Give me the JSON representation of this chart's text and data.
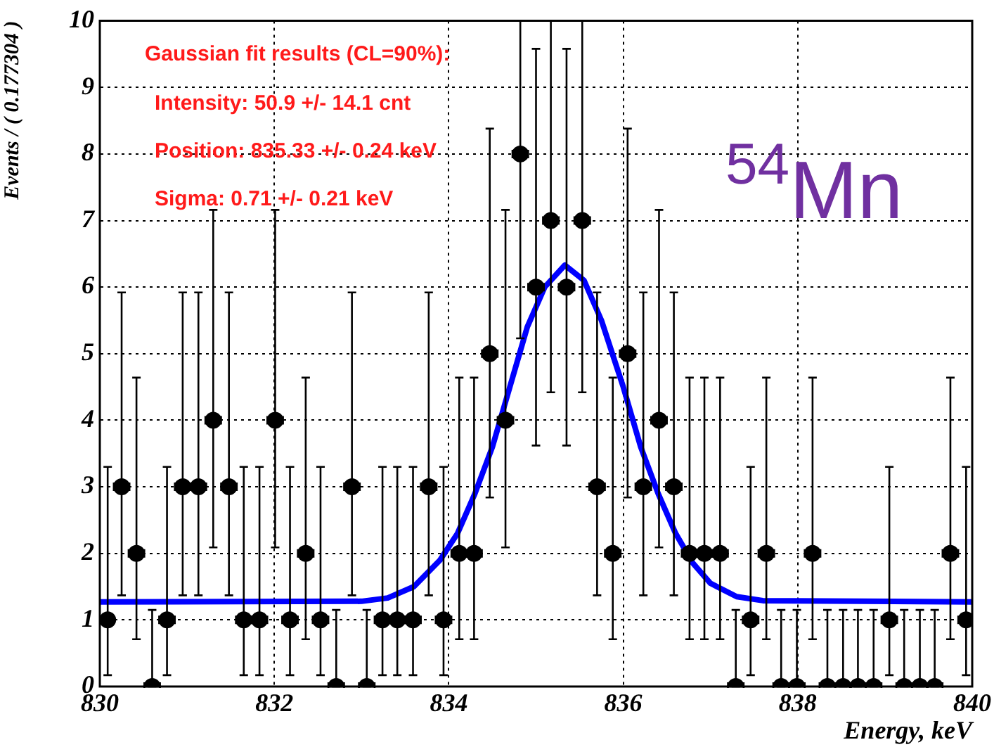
{
  "chart_data": {
    "type": "scatter",
    "xlabel": "Energy, keV",
    "ylabel": "Events / ( 0.177304 )",
    "xlim": [
      830,
      840
    ],
    "xticks": [
      830,
      832,
      834,
      836,
      838,
      840
    ],
    "ylim": [
      0,
      10
    ],
    "yticks": [
      0,
      1,
      2,
      3,
      4,
      5,
      6,
      7,
      8,
      9,
      10
    ],
    "grid": true,
    "legend": false,
    "annotations": [
      "Gaussian fit results (CL=90%):",
      "Intensity: 50.9 +/- 14.1 cnt",
      "Position: 835.33 +/- 0.24 keV",
      "Sigma: 0.71 +/- 0.21 keV",
      "$^{54}$Mn"
    ],
    "series": [
      {
        "marker": "circle",
        "color": "#000000",
        "x": [
          830.09,
          830.25,
          830.42,
          830.6,
          830.77,
          830.95,
          831.13,
          831.3,
          831.48,
          831.65,
          831.83,
          832.01,
          832.18,
          832.36,
          832.53,
          832.71,
          832.89,
          833.06,
          833.24,
          833.41,
          833.59,
          833.77,
          833.94,
          834.12,
          834.29,
          834.47,
          834.65,
          834.82,
          835.0,
          835.17,
          835.35,
          835.53,
          835.7,
          835.88,
          836.05,
          836.23,
          836.41,
          836.58,
          836.76,
          836.93,
          837.11,
          837.29,
          837.46,
          837.64,
          837.81,
          837.99,
          838.17,
          838.34,
          838.52,
          838.69,
          838.87,
          839.05,
          839.22,
          839.4,
          839.57,
          839.75,
          839.93
        ],
        "values": [
          1,
          3,
          2,
          0,
          1,
          3,
          3,
          4,
          3,
          1,
          1,
          4,
          1,
          2,
          1,
          0,
          3,
          0,
          1,
          1,
          1,
          3,
          1,
          2,
          2,
          5,
          4,
          8,
          6,
          7,
          6,
          7,
          3,
          2,
          5,
          3,
          4,
          3,
          2,
          2,
          2,
          0,
          1,
          2,
          0,
          0,
          2,
          0,
          0,
          0,
          0,
          1,
          0,
          0,
          0,
          2,
          1
        ],
        "errors": [
          [
            0.17,
            3.3
          ],
          [
            1.37,
            5.92
          ],
          [
            0.71,
            4.64
          ],
          [
            0,
            1.15
          ],
          [
            0.17,
            3.3
          ],
          [
            1.37,
            5.92
          ],
          [
            1.37,
            5.92
          ],
          [
            2.09,
            7.16
          ],
          [
            1.37,
            5.92
          ],
          [
            0.17,
            3.3
          ],
          [
            0.17,
            3.3
          ],
          [
            2.09,
            7.16
          ],
          [
            0.17,
            3.3
          ],
          [
            0.71,
            4.64
          ],
          [
            0.17,
            3.3
          ],
          [
            0,
            1.15
          ],
          [
            1.37,
            5.92
          ],
          [
            0,
            1.15
          ],
          [
            0.17,
            3.3
          ],
          [
            0.17,
            3.3
          ],
          [
            0.17,
            3.3
          ],
          [
            1.37,
            5.92
          ],
          [
            0.17,
            3.3
          ],
          [
            0.71,
            4.64
          ],
          [
            0.71,
            4.64
          ],
          [
            2.84,
            8.38
          ],
          [
            2.09,
            7.16
          ],
          [
            5.23,
            10
          ],
          [
            3.62,
            9.58
          ],
          [
            4.42,
            10
          ],
          [
            3.62,
            9.58
          ],
          [
            4.42,
            10
          ],
          [
            1.37,
            5.92
          ],
          [
            0.71,
            4.64
          ],
          [
            2.84,
            8.38
          ],
          [
            1.37,
            5.92
          ],
          [
            2.09,
            7.16
          ],
          [
            1.37,
            5.92
          ],
          [
            0.71,
            4.64
          ],
          [
            0.71,
            4.64
          ],
          [
            0.71,
            4.64
          ],
          [
            0,
            1.15
          ],
          [
            0.17,
            3.3
          ],
          [
            0.71,
            4.64
          ],
          [
            0,
            1.15
          ],
          [
            0,
            1.15
          ],
          [
            0.71,
            4.64
          ],
          [
            0,
            1.15
          ],
          [
            0,
            1.15
          ],
          [
            0,
            1.15
          ],
          [
            0,
            1.15
          ],
          [
            0.17,
            3.3
          ],
          [
            0,
            1.15
          ],
          [
            0,
            1.15
          ],
          [
            0,
            1.15
          ],
          [
            0.71,
            4.64
          ],
          [
            0.17,
            3.3
          ]
        ],
        "xerrors": [
          null,
          0.09,
          0.09,
          0.09,
          0.09,
          0.09,
          0.09,
          0.09,
          0.09,
          0.09,
          0.09,
          0.09,
          0.09,
          0.09,
          0.09,
          0.09,
          0.09,
          0.09,
          0.09,
          0.09,
          0.09,
          0.09,
          0.09,
          0.09,
          0.09,
          0.09,
          0.09,
          0.09,
          0.09,
          0.09,
          0.09,
          0.09,
          0.09,
          0.09,
          0.09,
          0.09,
          0.09,
          0.09,
          0.09,
          0.09,
          0.09,
          0.09,
          0.09,
          0.09,
          0.09,
          0.09,
          0.09,
          0.09,
          0.09,
          0.09,
          0.09,
          0.09,
          0.09,
          0.09,
          0.09,
          0.09,
          0.09
        ]
      },
      {
        "type": "line",
        "marker": "none",
        "line_style": "solid",
        "color": "#0000ff",
        "x": [
          830,
          833.0,
          833.3,
          833.6,
          833.9,
          834.1,
          834.3,
          834.5,
          834.7,
          834.9,
          835.1,
          835.33,
          835.55,
          835.75,
          836.0,
          836.2,
          836.4,
          836.6,
          836.8,
          837.0,
          837.3,
          837.6,
          840
        ],
        "values": [
          1.27,
          1.28,
          1.33,
          1.5,
          1.9,
          2.3,
          2.9,
          3.6,
          4.5,
          5.4,
          6.0,
          6.33,
          6.1,
          5.5,
          4.5,
          3.6,
          2.9,
          2.3,
          1.85,
          1.55,
          1.35,
          1.29,
          1.27
        ]
      }
    ]
  }
}
